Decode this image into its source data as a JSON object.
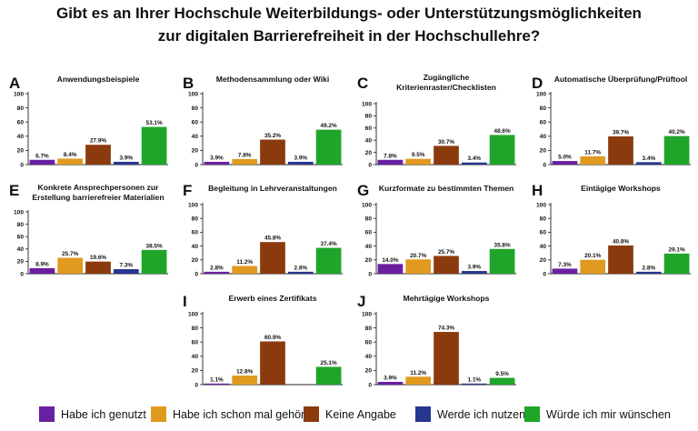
{
  "title_lines": [
    "Gibt es an Ihrer Hochschule Weiterbildungs- oder Unterstützungsmöglichkeiten",
    "zur digitalen Barrierefreiheit in der Hochschullehre?"
  ],
  "colors": {
    "Habe ich genutzt": "#6a1fa0",
    "Habe ich schon mal gehört": "#e09a1f",
    "Keine Angabe": "#8b3a0e",
    "Werde ich nutzen": "#27368f",
    "Würde ich mir wünschen": "#1fa52a"
  },
  "legend": [
    "Habe ich genutzt",
    "Habe ich schon mal gehört",
    "Keine Angabe",
    "Werde ich nutzen",
    "Würde ich mir wünschen"
  ],
  "chart_data": [
    {
      "panel": "A",
      "type": "bar",
      "title": [
        "Anwendungsbeispiele"
      ],
      "ylim": [
        0,
        100
      ],
      "yticks": [
        0,
        20,
        40,
        60,
        80,
        100
      ],
      "categories": [
        "Habe ich genutzt",
        "Habe ich schon mal gehört",
        "Keine Angabe",
        "Werde ich nutzen",
        "Würde ich mir wünschen"
      ],
      "values": [
        6.7,
        8.4,
        27.9,
        3.9,
        53.1
      ],
      "labels": [
        "6.7%",
        "8.4%",
        "27.9%",
        "3.9%",
        "53.1%"
      ]
    },
    {
      "panel": "B",
      "type": "bar",
      "title": [
        "Methodensammlung oder Wiki"
      ],
      "ylim": [
        0,
        100
      ],
      "yticks": [
        0,
        20,
        40,
        60,
        80,
        100
      ],
      "categories": [
        "Habe ich genutzt",
        "Habe ich schon mal gehört",
        "Keine Angabe",
        "Werde ich nutzen",
        "Würde ich mir wünschen"
      ],
      "values": [
        3.9,
        7.8,
        35.2,
        3.9,
        49.2
      ],
      "labels": [
        "3.9%",
        "7.8%",
        "35.2%",
        "3.9%",
        "49.2%"
      ]
    },
    {
      "panel": "C",
      "type": "bar",
      "title": [
        "Zugängliche",
        "Kriterienraster/Checklisten"
      ],
      "ylim": [
        0,
        100
      ],
      "yticks": [
        0,
        20,
        40,
        60,
        80,
        100
      ],
      "categories": [
        "Habe ich genutzt",
        "Habe ich schon mal gehört",
        "Keine Angabe",
        "Werde ich nutzen",
        "Würde ich mir wünschen"
      ],
      "values": [
        7.8,
        9.5,
        30.7,
        3.4,
        48.6
      ],
      "labels": [
        "7.8%",
        "9.5%",
        "30.7%",
        "3.4%",
        "48.6%"
      ]
    },
    {
      "panel": "D",
      "type": "bar",
      "title": [
        "Automatische Überprüfung/Prüftool"
      ],
      "ylim": [
        0,
        100
      ],
      "yticks": [
        0,
        20,
        40,
        60,
        80,
        100
      ],
      "categories": [
        "Habe ich genutzt",
        "Habe ich schon mal gehört",
        "Keine Angabe",
        "Werde ich nutzen",
        "Würde ich mir wünschen"
      ],
      "values": [
        5.0,
        11.7,
        39.7,
        3.4,
        40.2
      ],
      "labels": [
        "5.0%",
        "11.7%",
        "39.7%",
        "3.4%",
        "40.2%"
      ]
    },
    {
      "panel": "E",
      "type": "bar",
      "title": [
        "Konkrete Ansprechpersonen zur",
        "Erstellung barrierefreier Materialien"
      ],
      "ylim": [
        0,
        100
      ],
      "yticks": [
        0,
        20,
        40,
        60,
        80,
        100
      ],
      "categories": [
        "Habe ich genutzt",
        "Habe ich schon mal gehört",
        "Keine Angabe",
        "Werde ich nutzen",
        "Würde ich mir wünschen"
      ],
      "values": [
        8.9,
        25.7,
        19.6,
        7.3,
        38.5
      ],
      "labels": [
        "8.9%",
        "25.7%",
        "19.6%",
        "7.3%",
        "38.5%"
      ]
    },
    {
      "panel": "F",
      "type": "bar",
      "title": [
        "Begleitung in Lehrveranstaltungen"
      ],
      "ylim": [
        0,
        100
      ],
      "yticks": [
        0,
        20,
        40,
        60,
        80,
        100
      ],
      "categories": [
        "Habe ich genutzt",
        "Habe ich schon mal gehört",
        "Keine Angabe",
        "Werde ich nutzen",
        "Würde ich mir wünschen"
      ],
      "values": [
        2.8,
        11.2,
        45.8,
        2.8,
        37.4
      ],
      "labels": [
        "2.8%",
        "11.2%",
        "45.8%",
        "2.8%",
        "37.4%"
      ]
    },
    {
      "panel": "G",
      "type": "bar",
      "title": [
        "Kurzformate zu bestimmten Themen"
      ],
      "ylim": [
        0,
        100
      ],
      "yticks": [
        0,
        20,
        40,
        60,
        80,
        100
      ],
      "categories": [
        "Habe ich genutzt",
        "Habe ich schon mal gehört",
        "Keine Angabe",
        "Werde ich nutzen",
        "Würde ich mir wünschen"
      ],
      "values": [
        14.0,
        20.7,
        25.7,
        3.9,
        35.8
      ],
      "labels": [
        "14.0%",
        "20.7%",
        "25.7%",
        "3.9%",
        "35.8%"
      ]
    },
    {
      "panel": "H",
      "type": "bar",
      "title": [
        "Eintägige Workshops"
      ],
      "ylim": [
        0,
        100
      ],
      "yticks": [
        0,
        20,
        40,
        60,
        80,
        100
      ],
      "categories": [
        "Habe ich genutzt",
        "Habe ich schon mal gehört",
        "Keine Angabe",
        "Werde ich nutzen",
        "Würde ich mir wünschen"
      ],
      "values": [
        7.3,
        20.1,
        40.8,
        2.8,
        29.1
      ],
      "labels": [
        "7.3%",
        "20.1%",
        "40.8%",
        "2.8%",
        "29.1%"
      ]
    },
    {
      "panel": "I",
      "type": "bar",
      "title": [
        "Erwerb eines Zertifikats"
      ],
      "ylim": [
        0,
        100
      ],
      "yticks": [
        0,
        20,
        40,
        60,
        80,
        100
      ],
      "categories": [
        "Habe ich genutzt",
        "Habe ich schon mal gehört",
        "Keine Angabe",
        "Werde ich nutzen",
        "Würde ich mir wünschen"
      ],
      "values": [
        1.1,
        12.8,
        60.9,
        null,
        25.1
      ],
      "labels": [
        "1.1%",
        "12.8%",
        "60.9%",
        "",
        "25.1%"
      ]
    },
    {
      "panel": "J",
      "type": "bar",
      "title": [
        "Mehrtägige Workshops"
      ],
      "ylim": [
        0,
        100
      ],
      "yticks": [
        0,
        20,
        40,
        60,
        80,
        100
      ],
      "categories": [
        "Habe ich genutzt",
        "Habe ich schon mal gehört",
        "Keine Angabe",
        "Werde ich nutzen",
        "Würde ich mir wünschen"
      ],
      "values": [
        3.9,
        11.2,
        74.3,
        1.1,
        9.5
      ],
      "labels": [
        "3.9%",
        "11.2%",
        "74.3%",
        "1.1%",
        "9.5%"
      ]
    }
  ]
}
